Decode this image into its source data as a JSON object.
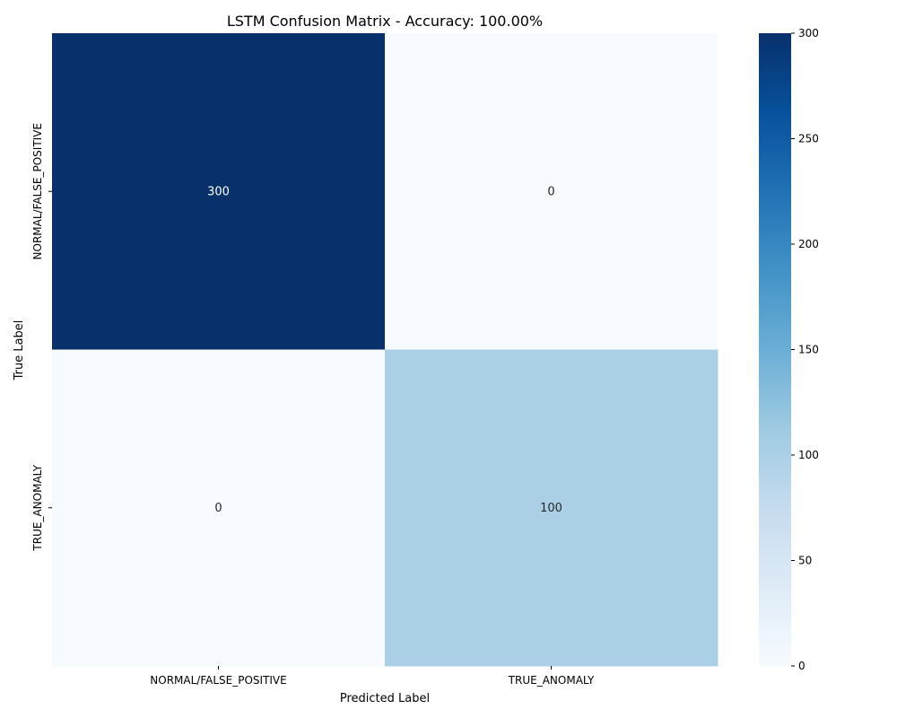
{
  "chart_data": {
    "type": "heatmap",
    "title": "LSTM Confusion Matrix - Accuracy: 100.00%",
    "xlabel": "Predicted Label",
    "ylabel": "True Label",
    "x_categories": [
      "NORMAL/FALSE_POSITIVE",
      "TRUE_ANOMALY"
    ],
    "y_categories": [
      "NORMAL/FALSE_POSITIVE",
      "TRUE_ANOMALY"
    ],
    "values": [
      [
        300,
        0
      ],
      [
        0,
        100
      ]
    ],
    "colorbar": {
      "range": [
        0,
        300
      ],
      "ticks": [
        0,
        50,
        100,
        150,
        200,
        250,
        300
      ],
      "colormap": [
        "#f7fbff",
        "#deebf7",
        "#c6dbef",
        "#9ecae1",
        "#6baed6",
        "#4292c6",
        "#2171b5",
        "#08519c",
        "#08306b"
      ]
    },
    "grid": false,
    "legend": "colorbar-right"
  }
}
